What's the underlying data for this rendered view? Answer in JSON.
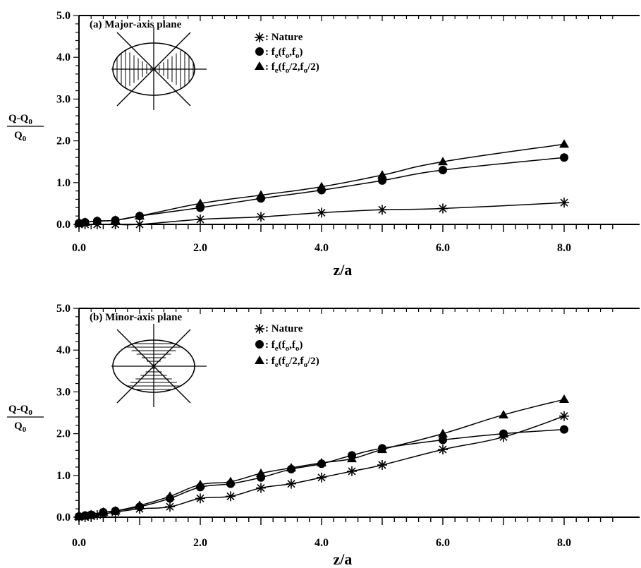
{
  "chart_data": [
    {
      "type": "line",
      "title": "(a) Major-axis plane",
      "xlabel": "z/a",
      "ylabel_num": "Q-Q",
      "ylabel_num_sub": "0",
      "ylabel_den": "Q",
      "ylabel_den_sub": "0",
      "xlim": [
        0,
        9
      ],
      "ylim": [
        0,
        5
      ],
      "xticks": [
        "0.0",
        "2.0",
        "4.0",
        "6.0",
        "8.0"
      ],
      "yticks": [
        "0.0",
        "1.0",
        "2.0",
        "3.0",
        "4.0",
        "5.0"
      ],
      "grid": false,
      "legend_position": "top-center",
      "series": [
        {
          "name": ": Nature",
          "marker": "asterisk",
          "x": [
            0,
            0.1,
            0.3,
            0.6,
            1.0,
            2.0,
            3.0,
            4.0,
            5.0,
            6.0,
            8.0
          ],
          "y": [
            0.0,
            0.0,
            0.0,
            0.0,
            0.0,
            0.12,
            0.18,
            0.28,
            0.35,
            0.38,
            0.52
          ]
        },
        {
          "name": ": fe(fo,fo)",
          "marker": "circle",
          "x": [
            0,
            0.1,
            0.3,
            0.6,
            1.0,
            2.0,
            3.0,
            4.0,
            5.0,
            6.0,
            8.0
          ],
          "y": [
            0.03,
            0.05,
            0.08,
            0.1,
            0.2,
            0.4,
            0.62,
            0.82,
            1.05,
            1.3,
            1.6
          ]
        },
        {
          "name": ": fe(fo/2,fo/2)",
          "marker": "triangle",
          "x": [
            0,
            0.1,
            0.3,
            0.6,
            1.0,
            2.0,
            3.0,
            4.0,
            5.0,
            6.0,
            8.0
          ],
          "y": [
            0.03,
            0.05,
            0.08,
            0.1,
            0.2,
            0.5,
            0.7,
            0.9,
            1.18,
            1.5,
            1.92
          ]
        }
      ]
    },
    {
      "type": "line",
      "title": "(b) Minor-axis plane",
      "xlabel": "z/a",
      "ylabel_num": "Q-Q",
      "ylabel_num_sub": "0",
      "ylabel_den": "Q",
      "ylabel_den_sub": "0",
      "xlim": [
        0,
        9
      ],
      "ylim": [
        0,
        5
      ],
      "xticks": [
        "0.0",
        "2.0",
        "4.0",
        "6.0",
        "8.0"
      ],
      "yticks": [
        "0.0",
        "1.0",
        "2.0",
        "3.0",
        "4.0",
        "5.0"
      ],
      "grid": false,
      "legend_position": "top-center",
      "series": [
        {
          "name": ": Nature",
          "marker": "asterisk",
          "x": [
            0,
            0.1,
            0.2,
            0.3,
            0.4,
            0.6,
            1.0,
            1.5,
            2.0,
            2.5,
            3.0,
            3.5,
            4.0,
            4.5,
            5.0,
            6.0,
            7.0,
            8.0
          ],
          "y": [
            0.0,
            0.0,
            0.02,
            0.05,
            0.08,
            0.12,
            0.2,
            0.25,
            0.45,
            0.5,
            0.7,
            0.8,
            0.95,
            1.1,
            1.25,
            1.62,
            1.92,
            2.42
          ]
        },
        {
          "name": ": fe(fo,fo)",
          "marker": "circle",
          "x": [
            0,
            0.1,
            0.2,
            0.4,
            0.6,
            1.0,
            1.5,
            2.0,
            2.5,
            3.0,
            3.5,
            4.0,
            4.5,
            5.0,
            6.0,
            7.0,
            8.0
          ],
          "y": [
            0.02,
            0.04,
            0.06,
            0.12,
            0.15,
            0.25,
            0.45,
            0.72,
            0.8,
            0.95,
            1.15,
            1.28,
            1.48,
            1.65,
            1.85,
            2.0,
            2.1
          ]
        },
        {
          "name": ": fe(fo/2,fo/2)",
          "marker": "triangle",
          "x": [
            0,
            0.1,
            0.2,
            0.4,
            0.6,
            1.0,
            1.5,
            2.0,
            2.5,
            3.0,
            3.5,
            4.0,
            4.5,
            5.0,
            6.0,
            7.0,
            8.0
          ],
          "y": [
            0.02,
            0.04,
            0.06,
            0.12,
            0.15,
            0.28,
            0.5,
            0.78,
            0.85,
            1.05,
            1.18,
            1.3,
            1.4,
            1.62,
            2.0,
            2.45,
            2.82
          ]
        }
      ]
    }
  ],
  "legend_text": {
    "nature": ": Nature",
    "fe_prefix": ": f",
    "fe_sub": "e",
    "fe1_open": "(f",
    "fe1_sub": "o",
    "fe1_mid": ",f",
    "fe1_sub2": "o",
    "fe1_close": ")",
    "fe2_open": "(f",
    "fe2_sub": "o",
    "fe2_mid": "/2,f",
    "fe2_sub2": "o",
    "fe2_close": "/2)"
  }
}
